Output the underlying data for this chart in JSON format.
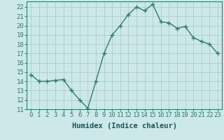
{
  "x": [
    0,
    1,
    2,
    3,
    4,
    5,
    6,
    7,
    8,
    9,
    10,
    11,
    12,
    13,
    14,
    15,
    16,
    17,
    18,
    19,
    20,
    21,
    22,
    23
  ],
  "y": [
    14.7,
    14.0,
    14.0,
    14.1,
    14.2,
    13.0,
    12.0,
    11.1,
    14.0,
    17.0,
    19.0,
    20.0,
    21.2,
    22.0,
    21.6,
    22.3,
    20.4,
    20.3,
    19.7,
    19.9,
    18.7,
    18.3,
    18.0,
    17.0
  ],
  "line_color": "#2e7d6e",
  "marker": "+",
  "marker_size": 4,
  "bg_color": "#cce8e8",
  "grid_color": "#aacece",
  "xlabel": "Humidex (Indice chaleur)",
  "xlim": [
    -0.5,
    23.5
  ],
  "ylim": [
    11,
    22.6
  ],
  "yticks": [
    11,
    12,
    13,
    14,
    15,
    16,
    17,
    18,
    19,
    20,
    21,
    22
  ],
  "xticks": [
    0,
    1,
    2,
    3,
    4,
    5,
    6,
    7,
    8,
    9,
    10,
    11,
    12,
    13,
    14,
    15,
    16,
    17,
    18,
    19,
    20,
    21,
    22,
    23
  ],
  "xlabel_fontsize": 7.5,
  "tick_fontsize": 6.5,
  "line_width": 1.0,
  "marker_color": "#2e7d6e"
}
